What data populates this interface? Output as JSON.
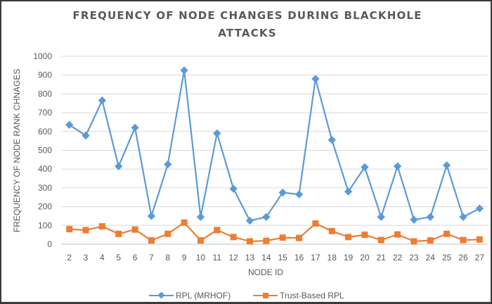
{
  "chart_data": {
    "type": "line",
    "title_lines": [
      "FREQUENCY OF NODE CHANGES DURING BLACKHOLE",
      "ATTACKS"
    ],
    "xlabel": "NODE ID",
    "ylabel": "FREQUENCY OF NODE RANK CHNAGES",
    "ylim": [
      0,
      1000
    ],
    "yticks": [
      "0",
      "100",
      "200",
      "300",
      "400",
      "500",
      "600",
      "700",
      "800",
      "900",
      "1000"
    ],
    "grid": true,
    "legend_position": "bottom",
    "categories": [
      "2",
      "3",
      "4",
      "5",
      "6",
      "7",
      "8",
      "9",
      "10",
      "11",
      "12",
      "13",
      "14",
      "15",
      "16",
      "17",
      "18",
      "19",
      "20",
      "21",
      "22",
      "23",
      "24",
      "25",
      "26",
      "27"
    ],
    "series": [
      {
        "name": "RPL (MRHOF)",
        "color": "#5B9BD5",
        "marker": "diamond",
        "values": [
          635,
          578,
          765,
          415,
          620,
          150,
          425,
          925,
          145,
          590,
          295,
          125,
          145,
          275,
          265,
          880,
          555,
          280,
          410,
          145,
          415,
          130,
          145,
          420,
          145,
          190
        ]
      },
      {
        "name": "Trust-Based RPL",
        "color": "#ED7D31",
        "marker": "square",
        "values": [
          80,
          75,
          95,
          55,
          78,
          20,
          55,
          115,
          20,
          75,
          38,
          15,
          18,
          35,
          33,
          110,
          70,
          38,
          50,
          22,
          52,
          15,
          20,
          55,
          22,
          25
        ]
      }
    ]
  }
}
